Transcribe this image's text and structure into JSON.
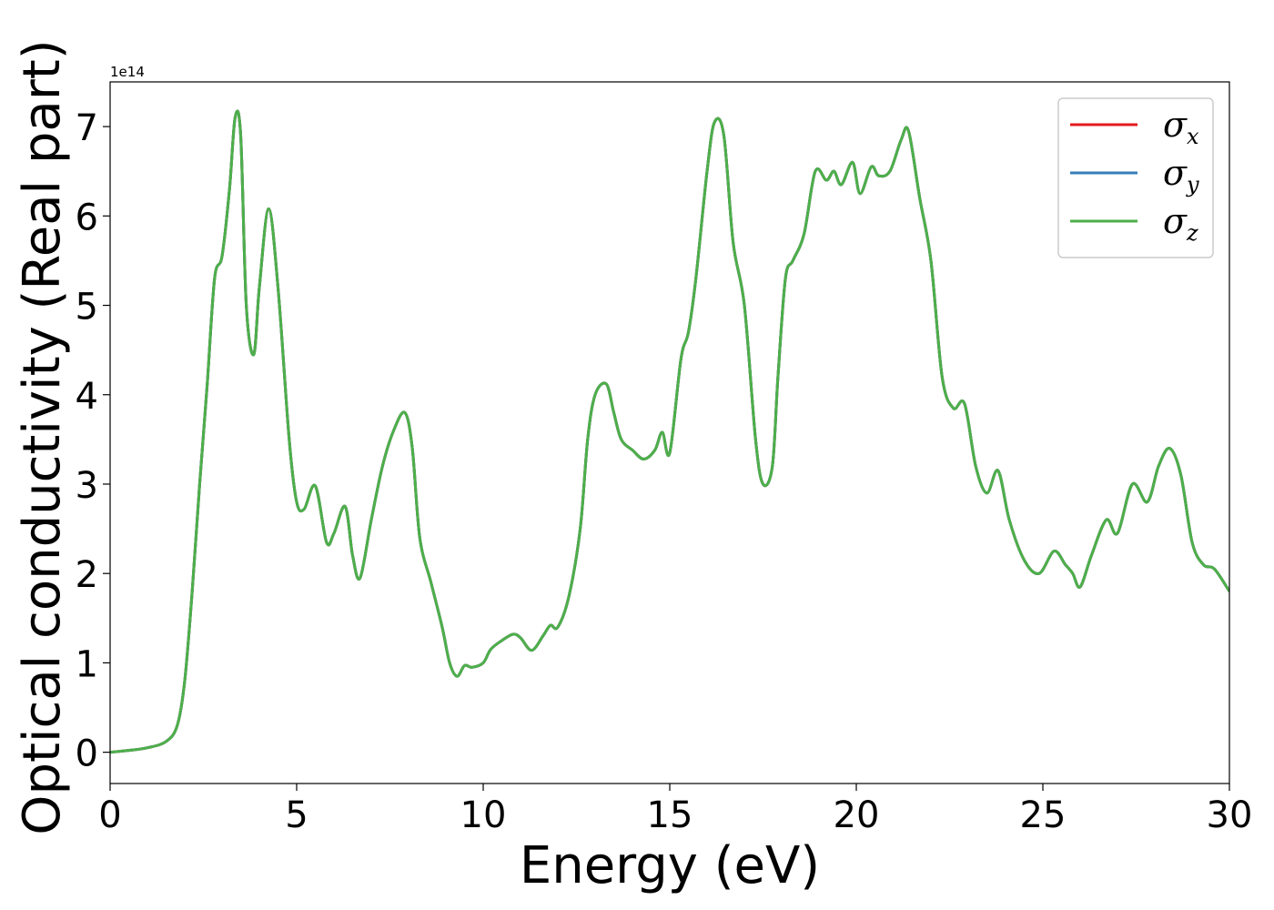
{
  "chart_data": {
    "type": "line",
    "title": "",
    "xlabel": "Energy (eV)",
    "ylabel": "Optical conductivity (Real part)",
    "y_offset_label": "1e14",
    "xlim": [
      0,
      30
    ],
    "ylim": [
      -0.35,
      7.5
    ],
    "xticks": [
      0,
      5,
      10,
      15,
      20,
      25,
      30
    ],
    "xtick_labels": [
      "0",
      "5",
      "10",
      "15",
      "20",
      "25",
      "30"
    ],
    "yticks": [
      0,
      1,
      2,
      3,
      4,
      5,
      6,
      7
    ],
    "ytick_labels": [
      "0",
      "1",
      "2",
      "3",
      "4",
      "5",
      "6",
      "7"
    ],
    "grid": false,
    "legend_position": "top-right",
    "colors": {
      "sigma_x": "#e41a1c",
      "sigma_y": "#377eb8",
      "sigma_z": "#4daf4a"
    },
    "x": [
      0,
      0.5,
      1.0,
      1.5,
      1.8,
      2.0,
      2.2,
      2.4,
      2.6,
      2.8,
      3.0,
      3.2,
      3.35,
      3.5,
      3.65,
      3.85,
      4.0,
      4.25,
      4.5,
      4.8,
      5.0,
      5.2,
      5.5,
      5.8,
      6.0,
      6.3,
      6.5,
      6.7,
      7.0,
      7.3,
      7.6,
      7.9,
      8.1,
      8.3,
      8.6,
      8.9,
      9.1,
      9.3,
      9.5,
      9.7,
      10.0,
      10.2,
      10.5,
      10.8,
      11.0,
      11.3,
      11.6,
      11.8,
      12.0,
      12.3,
      12.6,
      12.8,
      13.0,
      13.3,
      13.5,
      13.7,
      14.0,
      14.3,
      14.6,
      14.8,
      15.0,
      15.3,
      15.5,
      15.7,
      16.0,
      16.2,
      16.45,
      16.7,
      17.0,
      17.3,
      17.5,
      17.75,
      17.9,
      18.1,
      18.3,
      18.6,
      18.9,
      19.2,
      19.4,
      19.6,
      19.9,
      20.1,
      20.4,
      20.6,
      20.9,
      21.2,
      21.4,
      21.7,
      22.0,
      22.3,
      22.6,
      22.9,
      23.2,
      23.5,
      23.8,
      24.1,
      24.5,
      24.9,
      25.3,
      25.6,
      25.8,
      26.0,
      26.3,
      26.7,
      27.0,
      27.4,
      27.8,
      28.1,
      28.4,
      28.7,
      29.0,
      29.3,
      29.6,
      30.0
    ],
    "series": [
      {
        "name": "σx",
        "symbol": "σ",
        "subscript": "x",
        "color": "#e41a1c"
      },
      {
        "name": "σy",
        "symbol": "σ",
        "subscript": "y",
        "color": "#377eb8"
      },
      {
        "name": "σz",
        "symbol": "σ",
        "subscript": "z",
        "color": "#4daf4a"
      }
    ],
    "y": [
      0.0,
      0.02,
      0.05,
      0.12,
      0.3,
      0.8,
      1.8,
      3.0,
      4.1,
      5.3,
      5.55,
      6.3,
      7.1,
      6.9,
      5.0,
      4.45,
      5.2,
      6.08,
      5.2,
      3.5,
      2.8,
      2.72,
      2.98,
      2.35,
      2.45,
      2.75,
      2.2,
      1.95,
      2.6,
      3.2,
      3.6,
      3.8,
      3.4,
      2.4,
      1.9,
      1.4,
      1.0,
      0.85,
      0.97,
      0.95,
      1.0,
      1.15,
      1.25,
      1.32,
      1.28,
      1.14,
      1.3,
      1.42,
      1.4,
      1.75,
      2.5,
      3.5,
      4.0,
      4.12,
      3.8,
      3.5,
      3.38,
      3.28,
      3.38,
      3.58,
      3.35,
      4.4,
      4.7,
      5.3,
      6.5,
      7.05,
      6.9,
      5.7,
      5.0,
      3.5,
      3.0,
      3.2,
      4.2,
      5.3,
      5.5,
      5.8,
      6.5,
      6.4,
      6.5,
      6.35,
      6.6,
      6.25,
      6.55,
      6.45,
      6.5,
      6.85,
      6.95,
      6.2,
      5.5,
      4.2,
      3.85,
      3.9,
      3.2,
      2.9,
      3.15,
      2.6,
      2.15,
      2.0,
      2.25,
      2.1,
      2.0,
      1.85,
      2.2,
      2.6,
      2.45,
      3.0,
      2.8,
      3.2,
      3.4,
      3.1,
      2.35,
      2.1,
      2.05,
      1.8
    ]
  }
}
